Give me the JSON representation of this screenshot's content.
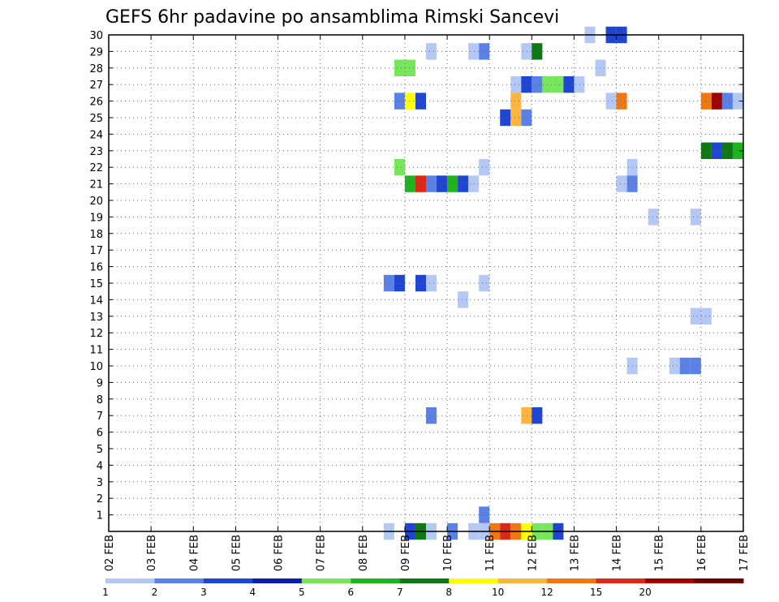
{
  "chart_data": {
    "type": "heatmap",
    "title": "GEFS 6hr padavine po ansamblima Rimski Sancevi",
    "xlabel": "",
    "ylabel": "",
    "x_ticks": [
      "02 FEB",
      "03 FEB",
      "04 FEB",
      "05 FEB",
      "06 FEB",
      "07 FEB",
      "08 FEB",
      "09 FEB",
      "10 FEB",
      "11 FEB",
      "12 FEB",
      "13 FEB",
      "14 FEB",
      "15 FEB",
      "16 FEB",
      "17 FEB"
    ],
    "x_range_days": [
      0,
      15
    ],
    "x_step_days": 0.25,
    "y_ticks": [
      1,
      2,
      3,
      4,
      5,
      6,
      7,
      8,
      9,
      10,
      11,
      12,
      13,
      14,
      15,
      16,
      17,
      18,
      19,
      20,
      21,
      22,
      23,
      24,
      25,
      26,
      27,
      28,
      29,
      30
    ],
    "y_range": [
      0,
      30
    ],
    "grid": true,
    "colorbar": {
      "labels": [
        "1",
        "2",
        "3",
        "4",
        "5",
        "6",
        "7",
        "8",
        "10",
        "12",
        "15",
        "20"
      ],
      "colors": [
        "#b4c8f5",
        "#5a82e6",
        "#1e46d2",
        "#0f1eaa",
        "#78e65a",
        "#1eb41e",
        "#0f7814",
        "#ffff00",
        "#ffb43c",
        "#f07814",
        "#dc2814",
        "#a00000",
        "#6e0000"
      ]
    },
    "cells": [
      {
        "member": 30,
        "t": 11.25,
        "v": 1
      },
      {
        "member": 30,
        "t": 11.75,
        "v": 3
      },
      {
        "member": 30,
        "t": 12.0,
        "v": 3
      },
      {
        "member": 29,
        "t": 7.5,
        "v": 1
      },
      {
        "member": 29,
        "t": 8.5,
        "v": 1
      },
      {
        "member": 29,
        "t": 8.75,
        "v": 2
      },
      {
        "member": 29,
        "t": 9.75,
        "v": 1
      },
      {
        "member": 29,
        "t": 10.0,
        "v": 7
      },
      {
        "member": 28,
        "t": 6.75,
        "v": 5
      },
      {
        "member": 28,
        "t": 7.0,
        "v": 5
      },
      {
        "member": 28,
        "t": 11.5,
        "v": 1
      },
      {
        "member": 27,
        "t": 9.5,
        "v": 1
      },
      {
        "member": 27,
        "t": 9.75,
        "v": 3
      },
      {
        "member": 27,
        "t": 10.0,
        "v": 2
      },
      {
        "member": 27,
        "t": 10.25,
        "v": 5
      },
      {
        "member": 27,
        "t": 10.5,
        "v": 5
      },
      {
        "member": 27,
        "t": 10.75,
        "v": 3
      },
      {
        "member": 27,
        "t": 11.0,
        "v": 1
      },
      {
        "member": 26,
        "t": 6.75,
        "v": 2
      },
      {
        "member": 26,
        "t": 7.0,
        "v": 8
      },
      {
        "member": 26,
        "t": 7.25,
        "v": 3
      },
      {
        "member": 26,
        "t": 9.5,
        "v": 10
      },
      {
        "member": 26,
        "t": 11.75,
        "v": 1
      },
      {
        "member": 26,
        "t": 12.0,
        "v": 12
      },
      {
        "member": 26,
        "t": 14.0,
        "v": 12
      },
      {
        "member": 26,
        "t": 14.25,
        "v": 20
      },
      {
        "member": 26,
        "t": 14.5,
        "v": 2
      },
      {
        "member": 26,
        "t": 14.75,
        "v": 1
      },
      {
        "member": 26,
        "t": 15.0,
        "v": 2
      },
      {
        "member": 25,
        "t": 9.25,
        "v": 3
      },
      {
        "member": 25,
        "t": 9.5,
        "v": 10
      },
      {
        "member": 25,
        "t": 9.75,
        "v": 2
      },
      {
        "member": 23,
        "t": 14.0,
        "v": 7
      },
      {
        "member": 23,
        "t": 14.25,
        "v": 3
      },
      {
        "member": 23,
        "t": 14.5,
        "v": 7
      },
      {
        "member": 23,
        "t": 14.75,
        "v": 6
      },
      {
        "member": 22,
        "t": 6.75,
        "v": 5
      },
      {
        "member": 22,
        "t": 8.75,
        "v": 1
      },
      {
        "member": 22,
        "t": 12.25,
        "v": 1
      },
      {
        "member": 21,
        "t": 7.0,
        "v": 6
      },
      {
        "member": 21,
        "t": 7.25,
        "v": 15
      },
      {
        "member": 21,
        "t": 7.5,
        "v": 2
      },
      {
        "member": 21,
        "t": 7.75,
        "v": 3
      },
      {
        "member": 21,
        "t": 8.0,
        "v": 6
      },
      {
        "member": 21,
        "t": 8.25,
        "v": 3
      },
      {
        "member": 21,
        "t": 8.5,
        "v": 1
      },
      {
        "member": 21,
        "t": 12.0,
        "v": 1
      },
      {
        "member": 21,
        "t": 12.25,
        "v": 2
      },
      {
        "member": 19,
        "t": 12.75,
        "v": 1
      },
      {
        "member": 19,
        "t": 13.75,
        "v": 1
      },
      {
        "member": 18,
        "t": 15.0,
        "v": 1
      },
      {
        "member": 15,
        "t": 6.5,
        "v": 2
      },
      {
        "member": 15,
        "t": 6.75,
        "v": 3
      },
      {
        "member": 15,
        "t": 7.25,
        "v": 3
      },
      {
        "member": 15,
        "t": 7.5,
        "v": 1
      },
      {
        "member": 15,
        "t": 8.75,
        "v": 1
      },
      {
        "member": 14,
        "t": 8.25,
        "v": 1
      },
      {
        "member": 13,
        "t": 13.75,
        "v": 1
      },
      {
        "member": 13,
        "t": 14.0,
        "v": 1
      },
      {
        "member": 12,
        "t": 15.0,
        "v": 1
      },
      {
        "member": 10,
        "t": 12.25,
        "v": 1
      },
      {
        "member": 10,
        "t": 13.25,
        "v": 1
      },
      {
        "member": 10,
        "t": 13.5,
        "v": 2
      },
      {
        "member": 10,
        "t": 13.75,
        "v": 2
      },
      {
        "member": 7,
        "t": 7.5,
        "v": 2
      },
      {
        "member": 7,
        "t": 9.75,
        "v": 10
      },
      {
        "member": 7,
        "t": 10.0,
        "v": 3
      },
      {
        "member": 1,
        "t": 8.75,
        "v": 2
      },
      {
        "member": 0,
        "t": 6.5,
        "v": 1
      },
      {
        "member": 0,
        "t": 7.0,
        "v": 3
      },
      {
        "member": 0,
        "t": 7.25,
        "v": 7
      },
      {
        "member": 0,
        "t": 7.5,
        "v": 1
      },
      {
        "member": 0,
        "t": 8.0,
        "v": 2
      },
      {
        "member": 0,
        "t": 8.5,
        "v": 1
      },
      {
        "member": 0,
        "t": 8.75,
        "v": 1
      },
      {
        "member": 0,
        "t": 9.0,
        "v": 12
      },
      {
        "member": 0,
        "t": 9.25,
        "v": 15
      },
      {
        "member": 0,
        "t": 9.5,
        "v": 12
      },
      {
        "member": 0,
        "t": 9.75,
        "v": 8
      },
      {
        "member": 0,
        "t": 10.0,
        "v": 5
      },
      {
        "member": 0,
        "t": 10.25,
        "v": 5
      },
      {
        "member": 0,
        "t": 10.5,
        "v": 3
      }
    ]
  }
}
